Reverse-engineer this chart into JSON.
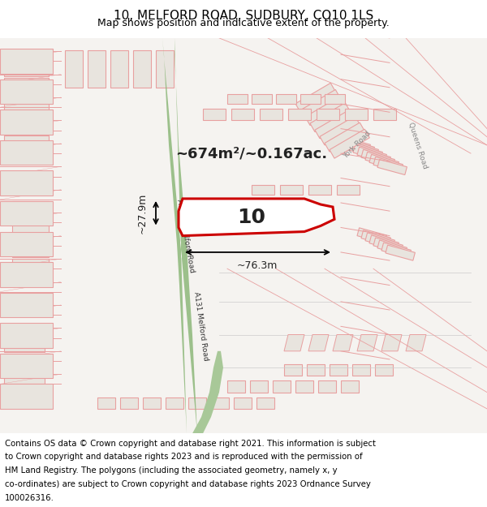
{
  "title": "10, MELFORD ROAD, SUDBURY, CO10 1LS",
  "subtitle": "Map shows position and indicative extent of the property.",
  "footer": "Contains OS data © Crown copyright and database right 2021. This information is subject to Crown copyright and database rights 2023 and is reproduced with the permission of HM Land Registry. The polygons (including the associated geometry, namely x, y co-ordinates) are subject to Crown copyright and database rights 2023 Ordnance Survey 100026316.",
  "bg_color": "#f0eeea",
  "map_bg": "#f5f3f0",
  "road_green": "#8db87a",
  "road_green_dark": "#6a9a58",
  "plot_outline_color": "#cc0000",
  "plot_label": "10",
  "area_label": "~674m²/~0.167ac.",
  "dim_width": "~76.3m",
  "dim_height": "~27.9m",
  "footer_bg": "#ffffff",
  "title_fontsize": 11,
  "subtitle_fontsize": 9,
  "footer_fontsize": 7.5
}
